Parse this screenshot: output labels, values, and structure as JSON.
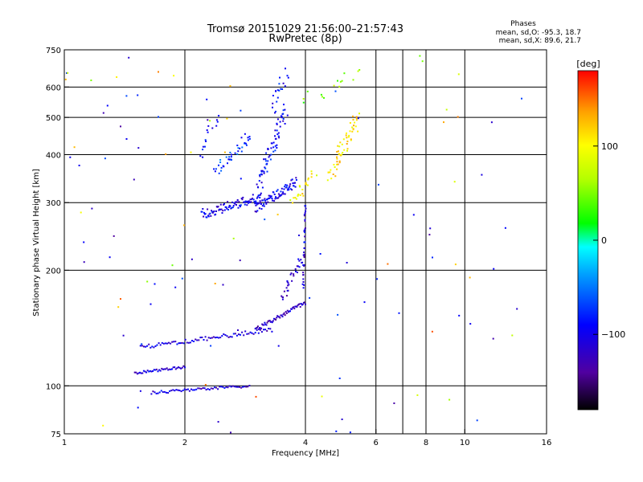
{
  "chart_data": {
    "type": "scatter",
    "title": "Tromsø 20151029 21:56:00–21:57:43",
    "subtitle": "RwPretec (8p)",
    "xlabel": "Frequency [MHz]",
    "ylabel": "Stationary phase Virtual Height [km]",
    "x_scale": "log2",
    "y_scale": "log",
    "xlim": [
      1,
      16
    ],
    "ylim": [
      75,
      750
    ],
    "x_ticks": [
      1,
      2,
      4,
      6,
      8,
      10,
      16
    ],
    "x_tick_labels": [
      "1",
      "2",
      "4",
      "6",
      "8",
      "10",
      "16"
    ],
    "x_gridlines": [
      2,
      4,
      6,
      7,
      8,
      10
    ],
    "y_ticks": [
      75,
      100,
      200,
      300,
      400,
      500,
      600,
      750
    ],
    "y_tick_labels": [
      "75",
      "100",
      "200",
      "300",
      "400",
      "500",
      "600",
      "750"
    ],
    "grid": true,
    "phases_panel": {
      "heading": "Phases",
      "line1": "mean, sd,O: -95.3, 18.7",
      "line2": "mean, sd,X: 89.6, 21.7"
    },
    "colorbar": {
      "label": "[deg]",
      "range": [
        -180,
        180
      ],
      "ticks": [
        100,
        0,
        -100
      ],
      "tick_labels": [
        "100",
        "0",
        "−100"
      ],
      "colors": [
        "#000000",
        "#5000a0",
        "#0000ff",
        "#00a0ff",
        "#00ffff",
        "#00ff00",
        "#b4ff00",
        "#ffff00",
        "#ffa000",
        "#ff0000"
      ]
    },
    "series": [
      {
        "x_range": [
          1.65,
          2.9
        ],
        "y_range": [
          96,
          100
        ],
        "phase_mean": -110,
        "n": 60,
        "jx": 0,
        "jy": 0.008
      },
      {
        "x_range": [
          1.5,
          2.0
        ],
        "y_range": [
          108,
          112
        ],
        "phase_mean": -110,
        "n": 40,
        "jx": 0,
        "jy": 0.008
      },
      {
        "x_range": [
          1.55,
          3.3
        ],
        "y_range": [
          126,
          140
        ],
        "phase_mean": -110,
        "n": 80,
        "jx": 0,
        "jy": 0.012
      },
      {
        "x_range": [
          3.0,
          4.0
        ],
        "y_range": [
          140,
          165
        ],
        "phase_mean": -120,
        "n": 60,
        "jx": 0,
        "jy": 0.012
      },
      {
        "x_range": [
          3.5,
          3.9
        ],
        "y_range": [
          168,
          215
        ],
        "phase_mean": -120,
        "n": 30,
        "jx": 0.015,
        "jy": 0.02
      },
      {
        "x_range": [
          3.95,
          4.0
        ],
        "y_range": [
          180,
          300
        ],
        "phase_mean": -110,
        "n": 35,
        "jx": 0.004,
        "jy": 0.02
      },
      {
        "x_range": [
          2.2,
          3.1
        ],
        "y_range": [
          280,
          310
        ],
        "phase_mean": -100,
        "n": 90,
        "jx": 0,
        "jy": 0.03
      },
      {
        "x_range": [
          3.0,
          3.8
        ],
        "y_range": [
          290,
          340
        ],
        "phase_mean": -100,
        "n": 80,
        "jx": 0,
        "jy": 0.03
      },
      {
        "x_range": [
          3.05,
          3.55
        ],
        "y_range": [
          330,
          520
        ],
        "phase_mean": -95,
        "n": 70,
        "jx": 0.02,
        "jy": 0.05
      },
      {
        "x_range": [
          3.3,
          3.6
        ],
        "y_range": [
          520,
          650
        ],
        "phase_mean": -90,
        "n": 20,
        "jx": 0.02,
        "jy": 0.04
      },
      {
        "x_range": [
          2.4,
          2.9
        ],
        "y_range": [
          360,
          450
        ],
        "phase_mean": -70,
        "n": 40,
        "jx": 0.02,
        "jy": 0.03
      },
      {
        "x_range": [
          2.2,
          2.4
        ],
        "y_range": [
          400,
          500
        ],
        "phase_mean": -90,
        "n": 15,
        "jx": 0.02,
        "jy": 0.03
      },
      {
        "x_range": [
          4.6,
          5.4
        ],
        "y_range": [
          350,
          500
        ],
        "phase_mean": 110,
        "n": 60,
        "jx": 0.02,
        "jy": 0.05
      },
      {
        "x_range": [
          3.7,
          4.2
        ],
        "y_range": [
          300,
          360
        ],
        "phase_mean": 100,
        "n": 25,
        "jx": 0.02,
        "jy": 0.03
      },
      {
        "x_range": [
          4.0,
          5.5
        ],
        "y_range": [
          560,
          660
        ],
        "phase_mean": 50,
        "n": 15,
        "jx": 0.04,
        "jy": 0.04
      }
    ]
  }
}
